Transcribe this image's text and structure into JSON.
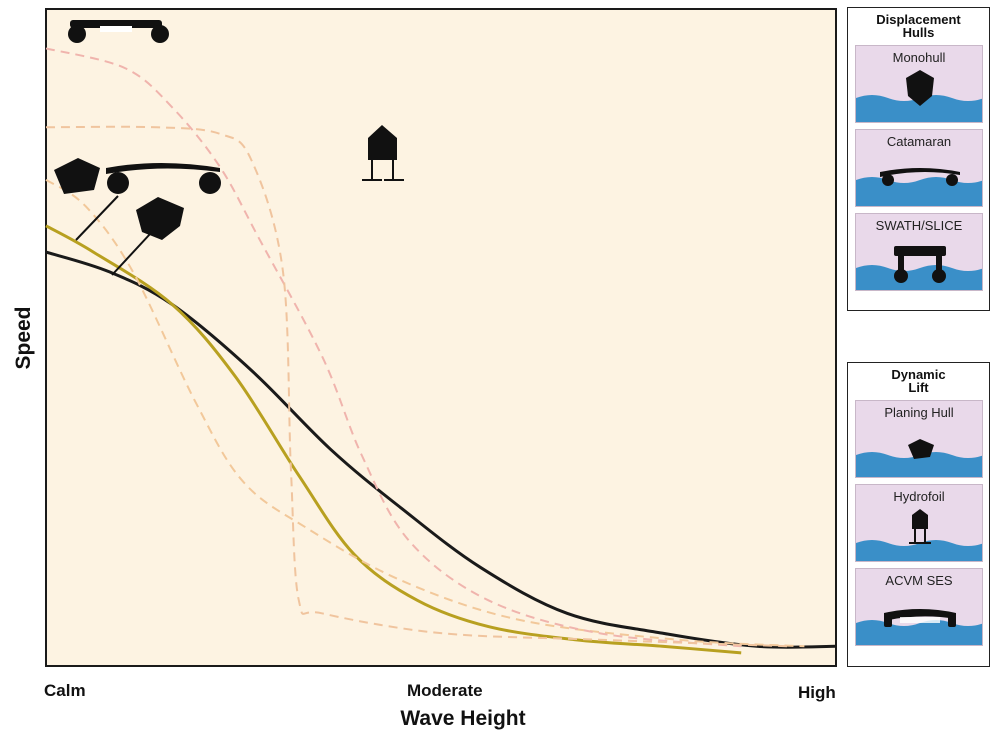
{
  "chart_data": {
    "type": "line",
    "title": "",
    "xlabel": "Wave Height",
    "ylabel": "Speed",
    "x_ticks": [
      "Calm",
      "Moderate",
      "High"
    ],
    "xlim": [
      0,
      1
    ],
    "ylim": [
      0,
      1
    ],
    "grid": false,
    "background": "#fdf3e2",
    "series": [
      {
        "style": "solid",
        "color": "#1a1a1a",
        "x": [
          0,
          0.08,
          0.16,
          0.26,
          0.36,
          0.45,
          0.55,
          0.66,
          0.78,
          0.9,
          1.0
        ],
        "y": [
          0.63,
          0.6,
          0.55,
          0.45,
          0.33,
          0.24,
          0.15,
          0.08,
          0.05,
          0.03,
          0.03
        ]
      },
      {
        "style": "solid",
        "color": "#b8a020",
        "x": [
          0,
          0.06,
          0.16,
          0.24,
          0.32,
          0.39,
          0.47,
          0.56,
          0.67,
          0.78,
          0.88
        ],
        "y": [
          0.67,
          0.63,
          0.55,
          0.44,
          0.29,
          0.17,
          0.1,
          0.06,
          0.04,
          0.03,
          0.02
        ]
      },
      {
        "style": "dashed",
        "color": "#f2c89a",
        "x": [
          0,
          0.05,
          0.11,
          0.19,
          0.25,
          0.33,
          0.45,
          0.6,
          0.8,
          0.96
        ],
        "y": [
          0.74,
          0.7,
          0.6,
          0.4,
          0.28,
          0.21,
          0.13,
          0.07,
          0.04,
          0.03
        ]
      },
      {
        "style": "dashed",
        "color": "#f0b4ad",
        "x": [
          0,
          0.1,
          0.16,
          0.22,
          0.27,
          0.35,
          0.4,
          0.46,
          0.56,
          0.7,
          0.88
        ],
        "y": [
          0.94,
          0.91,
          0.85,
          0.76,
          0.65,
          0.47,
          0.32,
          0.19,
          0.1,
          0.05,
          0.03
        ]
      },
      {
        "style": "dashed",
        "color": "#f0c49e",
        "x": [
          0,
          0.14,
          0.22,
          0.26,
          0.3,
          0.31,
          0.32,
          0.35,
          0.5,
          0.7,
          0.94
        ],
        "y": [
          0.82,
          0.82,
          0.81,
          0.77,
          0.6,
          0.3,
          0.1,
          0.08,
          0.05,
          0.04,
          0.03
        ]
      }
    ]
  },
  "panels": [
    {
      "title": "Displacement\nHulls",
      "items": [
        {
          "label": "Monohull",
          "icon": "monohull-icon"
        },
        {
          "label": "Catamaran",
          "icon": "catamaran-icon"
        },
        {
          "label": "SWATH/SLICE",
          "icon": "swath-icon"
        }
      ]
    },
    {
      "title": "Dynamic\nLift",
      "items": [
        {
          "label": "Planing Hull",
          "icon": "planing-hull-icon"
        },
        {
          "label": "Hydrofoil",
          "icon": "hydrofoil-icon"
        },
        {
          "label": "ACVM SES",
          "icon": "acv-ses-icon"
        }
      ]
    }
  ],
  "colors": {
    "water": "#3a8fc8",
    "card": "#e9d9ea",
    "plot_bg": "#fdf3e2"
  }
}
